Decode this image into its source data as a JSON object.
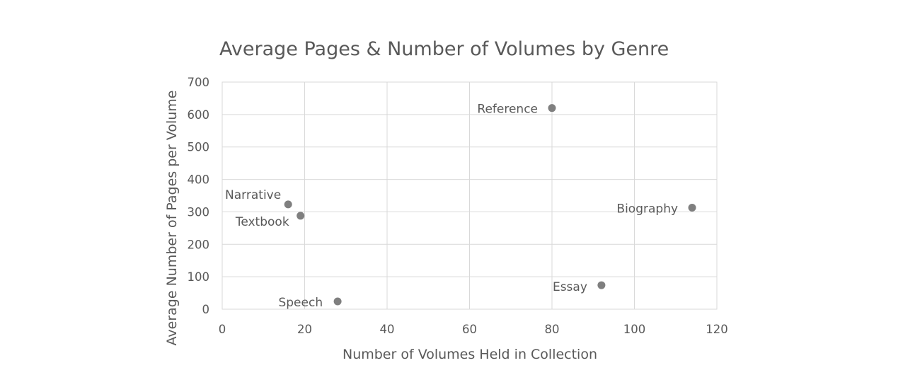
{
  "chart_data": {
    "type": "scatter",
    "title": "Average Pages & Number of Volumes by Genre",
    "xlabel": "Number of Volumes Held in Collection",
    "ylabel": "Average Number of Pages per Volume",
    "xlim": [
      0,
      120
    ],
    "ylim": [
      0,
      700
    ],
    "x_ticks": [
      0,
      20,
      40,
      60,
      80,
      100,
      120
    ],
    "y_ticks": [
      0,
      100,
      200,
      300,
      400,
      500,
      600,
      700
    ],
    "grid": true,
    "legend": "none",
    "marker_color": "#7f7f7f",
    "points": [
      {
        "label": "Reference",
        "x": 80,
        "y": 620
      },
      {
        "label": "Narrative",
        "x": 16,
        "y": 323
      },
      {
        "label": "Textbook",
        "x": 19,
        "y": 288
      },
      {
        "label": "Biography",
        "x": 114,
        "y": 313
      },
      {
        "label": "Essay",
        "x": 92,
        "y": 74
      },
      {
        "label": "Speech",
        "x": 28,
        "y": 24
      }
    ]
  }
}
